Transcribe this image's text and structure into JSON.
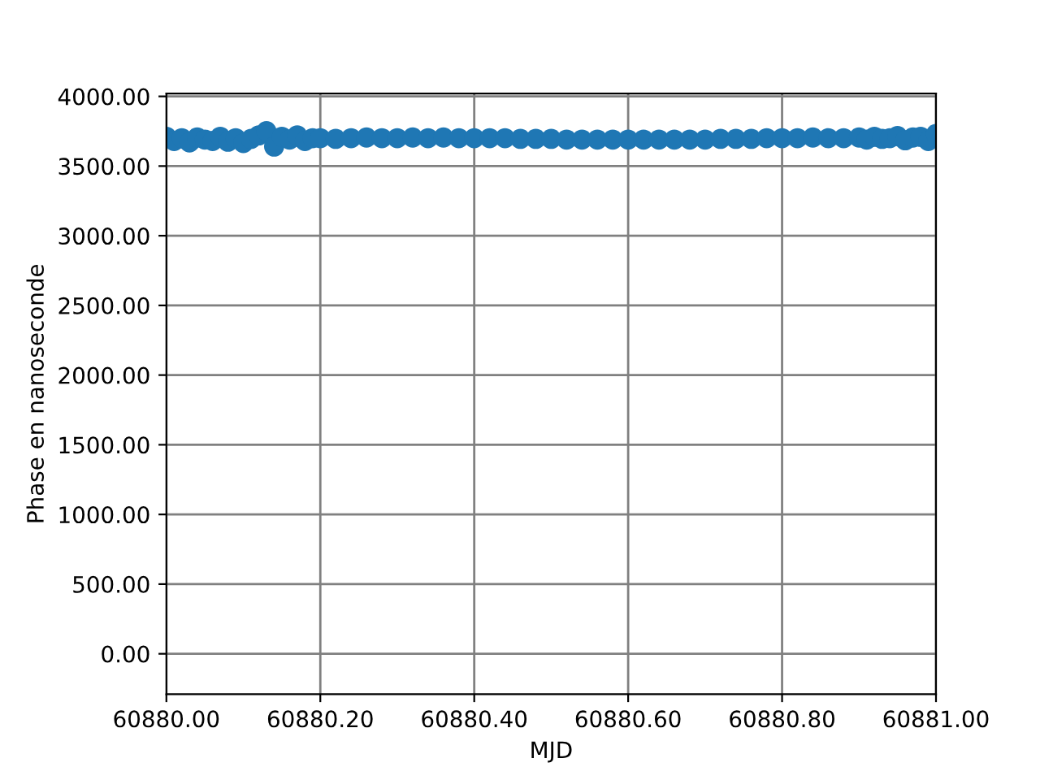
{
  "chart_data": {
    "type": "scatter",
    "xlabel": "MJD",
    "ylabel": "Phase en nanoseconde",
    "x": [
      60880.0,
      60880.01,
      60880.02,
      60880.03,
      60880.04,
      60880.05,
      60880.06,
      60880.07,
      60880.08,
      60880.09,
      60880.1,
      60880.11,
      60880.12,
      60880.13,
      60880.14,
      60880.15,
      60880.16,
      60880.17,
      60880.18,
      60880.19,
      60880.2,
      60880.22,
      60880.24,
      60880.26,
      60880.28,
      60880.3,
      60880.32,
      60880.34,
      60880.36,
      60880.38,
      60880.4,
      60880.42,
      60880.44,
      60880.46,
      60880.48,
      60880.5,
      60880.52,
      60880.54,
      60880.56,
      60880.58,
      60880.6,
      60880.62,
      60880.64,
      60880.66,
      60880.68,
      60880.7,
      60880.72,
      60880.74,
      60880.76,
      60880.78,
      60880.8,
      60880.82,
      60880.84,
      60880.86,
      60880.88,
      60880.9,
      60880.91,
      60880.92,
      60880.93,
      60880.94,
      60880.95,
      60880.96,
      60880.97,
      60880.98,
      60880.99,
      60881.0
    ],
    "series": [
      {
        "color": "#1f77b4",
        "values": [
          3710,
          3680,
          3700,
          3670,
          3705,
          3690,
          3680,
          3710,
          3675,
          3700,
          3665,
          3695,
          3720,
          3750,
          3640,
          3710,
          3690,
          3720,
          3680,
          3700,
          3700,
          3695,
          3700,
          3705,
          3700,
          3700,
          3705,
          3700,
          3705,
          3700,
          3700,
          3700,
          3700,
          3695,
          3695,
          3695,
          3690,
          3690,
          3690,
          3690,
          3690,
          3690,
          3690,
          3690,
          3690,
          3690,
          3695,
          3695,
          3695,
          3700,
          3700,
          3700,
          3705,
          3700,
          3700,
          3705,
          3690,
          3710,
          3695,
          3700,
          3715,
          3685,
          3705,
          3710,
          3680,
          3730
        ]
      }
    ],
    "marker": "circle",
    "xlim": [
      60880.0,
      60881.0
    ],
    "xticks": [
      {
        "value": 60880.0,
        "label": "60880.00"
      },
      {
        "value": 60880.2,
        "label": "60880.20"
      },
      {
        "value": 60880.4,
        "label": "60880.40"
      },
      {
        "value": 60880.6,
        "label": "60880.60"
      },
      {
        "value": 60880.8,
        "label": "60880.80"
      },
      {
        "value": 60881.0,
        "label": "60881.00"
      }
    ],
    "ylim": [
      -290,
      4020
    ],
    "yticks": [
      {
        "value": 0,
        "label": "0.00"
      },
      {
        "value": 500,
        "label": "500.00"
      },
      {
        "value": 1000,
        "label": "1000.00"
      },
      {
        "value": 1500,
        "label": "1500.00"
      },
      {
        "value": 2000,
        "label": "2000.00"
      },
      {
        "value": 2500,
        "label": "2500.00"
      },
      {
        "value": 3000,
        "label": "3000.00"
      },
      {
        "value": 3500,
        "label": "3500.00"
      },
      {
        "value": 4000,
        "label": "4000.00"
      }
    ],
    "grid": true
  }
}
